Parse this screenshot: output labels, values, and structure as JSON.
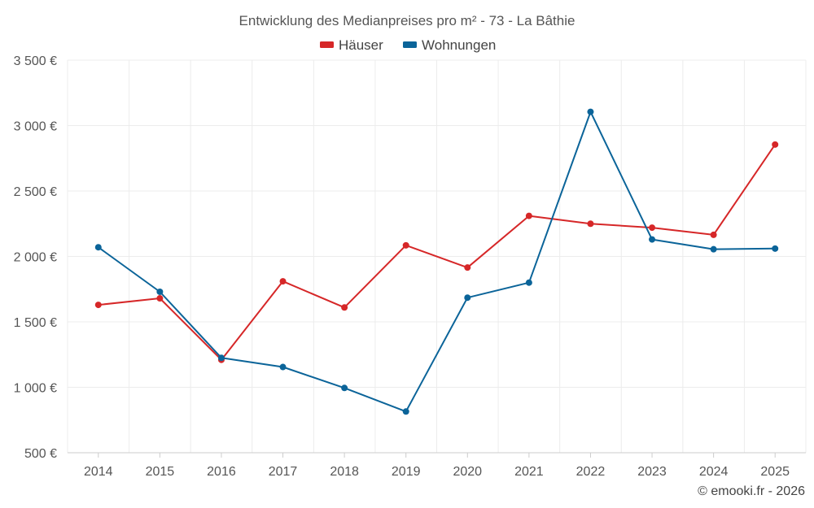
{
  "chart_data": {
    "type": "line",
    "title": "Entwicklung des Medianpreises pro m² - 73 - La Bâthie",
    "categories": [
      "2014",
      "2015",
      "2016",
      "2017",
      "2018",
      "2019",
      "2020",
      "2021",
      "2022",
      "2023",
      "2024",
      "2025"
    ],
    "series": [
      {
        "name": "Häuser",
        "color": "#d62728",
        "values": [
          1630,
          1680,
          1210,
          1810,
          1610,
          2085,
          1915,
          2310,
          2250,
          2220,
          2165,
          2855
        ]
      },
      {
        "name": "Wohnungen",
        "color": "#0b6499",
        "values": [
          2070,
          1730,
          1225,
          1155,
          995,
          815,
          1685,
          1800,
          3105,
          2130,
          2055,
          2060
        ]
      }
    ],
    "ylim": [
      500,
      3500
    ],
    "yticks": [
      500,
      1000,
      1500,
      2000,
      2500,
      3000,
      3500
    ],
    "ytick_labels": [
      "500 €",
      "1 000 €",
      "1 500 €",
      "2 000 €",
      "2 500 €",
      "3 000 €",
      "3 500 €"
    ],
    "grid": true,
    "legend": "top-center",
    "xlabel": "",
    "ylabel": ""
  },
  "credit": "© emooki.fr - 2026"
}
